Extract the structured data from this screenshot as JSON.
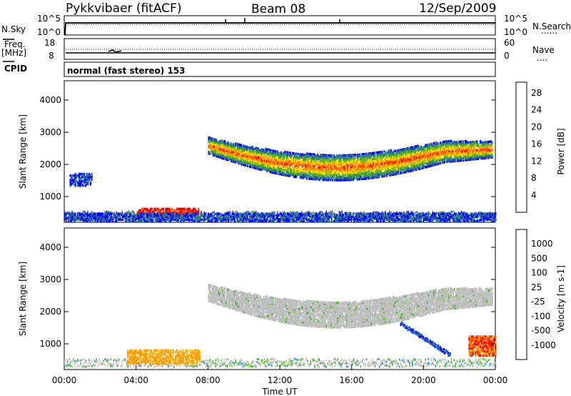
{
  "header": {
    "station": "Pykkvibaer (fitACF)",
    "beam": "Beam 08",
    "date": "12/Sep/2009"
  },
  "side_labels": {
    "nsky": "N.Sky",
    "freq_line1": "Freq.",
    "freq_line2": "[MHz]",
    "cpid": "CPID",
    "nsearch": "N.Search",
    "nave": "Nave",
    "dotted": "......",
    "dotted_short": "...."
  },
  "mode_text": "normal (fast stereo) 153",
  "noise_axis": {
    "top": "10^5",
    "bottom": "10^0",
    "right_top": "10^5",
    "right_bottom": "10^0"
  },
  "freq_axis": {
    "left_top": "18",
    "left_bottom": "8",
    "right_top": "60",
    "right_bottom": "0"
  },
  "xlabel": "Time UT",
  "ylabel": "Slant Range [km]",
  "colors": {
    "power_scale": [
      "#0000ff",
      "#1f3fbf",
      "#2f7f7f",
      "#3f9f3f",
      "#7fbf00",
      "#ffd700",
      "#ff9f00",
      "#ff6000",
      "#ff0000"
    ],
    "velocity_scale": [
      "#ff0000",
      "#ff6000",
      "#ff9f00",
      "#ffcf40",
      "#c8c8c8",
      "#c8c8c8",
      "#7fc83f",
      "#3f9f3f",
      "#2f7fbf",
      "#1f3fbf",
      "#0000ff"
    ],
    "ground_scatter": "#bebebe"
  },
  "chart_data": [
    {
      "type": "heatmap",
      "title": "",
      "xlabel": "Time UT",
      "ylabel": "Slant Range [km]",
      "xlim": [
        "00:00",
        "24:00"
      ],
      "ylim": [
        200,
        4600
      ],
      "x_ticks": [
        "00:00",
        "04:00",
        "08:00",
        "12:00",
        "16:00",
        "20:00",
        "00:00"
      ],
      "y_ticks": [
        "1000",
        "2000",
        "3000",
        "4000"
      ],
      "colorbar": {
        "label": "Power [dB]",
        "ticks": [
          "4",
          "8",
          "12",
          "16",
          "20",
          "24",
          "28"
        ],
        "range": [
          0,
          30
        ]
      },
      "features": [
        {
          "name": "band",
          "t_start": 8.0,
          "t_end": 23.8,
          "r_start": 2550,
          "r_end": 2250,
          "r_mid": 1750,
          "value": 20
        },
        {
          "name": "near-range patch",
          "t_start": 4.0,
          "t_end": 7.5,
          "range": [
            350,
            600
          ],
          "value": 28
        },
        {
          "name": "early patch",
          "t_start": 0.3,
          "t_end": 1.5,
          "range": [
            1300,
            1700
          ],
          "value": 8
        },
        {
          "name": "low-range scatter",
          "t_start": 0.0,
          "t_end": 24.0,
          "range": [
            200,
            450
          ],
          "value": 8
        }
      ]
    },
    {
      "type": "heatmap",
      "title": "",
      "xlabel": "Time UT",
      "ylabel": "Slant Range [km]",
      "xlim": [
        "00:00",
        "24:00"
      ],
      "ylim": [
        200,
        4600
      ],
      "x_ticks": [
        "00:00",
        "04:00",
        "08:00",
        "12:00",
        "16:00",
        "20:00",
        "00:00"
      ],
      "y_ticks": [
        "1000",
        "2000",
        "3000",
        "4000"
      ],
      "colorbar": {
        "label": "Velocity [m s-1]",
        "ticks": [
          "1000",
          "500",
          "100",
          "25",
          "-25",
          "-100",
          "-500",
          "-1000"
        ]
      },
      "features": [
        {
          "name": "ground scatter band",
          "t_start": 8.0,
          "t_end": 23.8,
          "r_start": 2550,
          "r_end": 2250,
          "r_mid": 1750,
          "value": 0
        },
        {
          "name": "near-range patch",
          "t_start": 3.5,
          "t_end": 7.5,
          "range": [
            350,
            800
          ],
          "value": -100
        },
        {
          "name": "diagonal descent",
          "t_start": 18.7,
          "t_end": 21.5,
          "range": [
            1600,
            600
          ],
          "value": 500
        },
        {
          "name": "late patch",
          "t_start": 22.5,
          "t_end": 24.0,
          "range": [
            600,
            1200
          ],
          "value": -500
        }
      ]
    }
  ]
}
